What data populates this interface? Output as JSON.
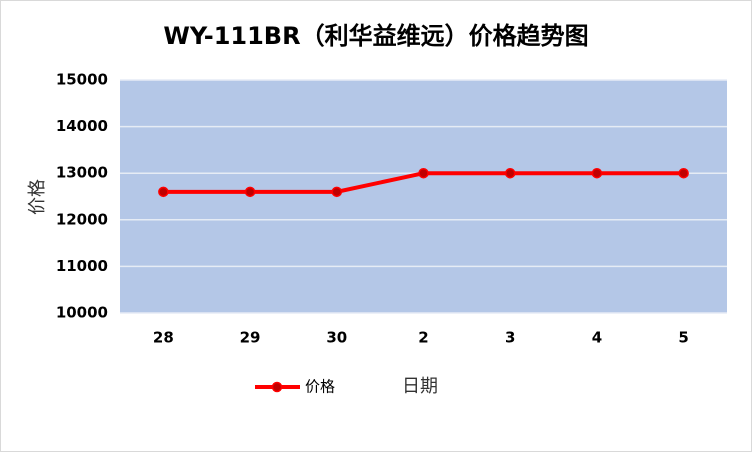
{
  "chart_data": {
    "type": "line",
    "title": "WY-111BR（利华益维远）价格趋势图",
    "x_label": "日期",
    "y_label": "价格",
    "categories": [
      "28",
      "29",
      "30",
      "2",
      "3",
      "4",
      "5"
    ],
    "series": [
      {
        "name": "价格",
        "color": "#ff0000",
        "values": [
          12600,
          12600,
          12600,
          13000,
          13000,
          13000,
          13000
        ]
      }
    ],
    "ylim": [
      10000,
      15000
    ],
    "yticks": [
      10000,
      11000,
      12000,
      13000,
      14000,
      15000
    ],
    "grid": true,
    "plot_background": "#b4c7e7"
  }
}
